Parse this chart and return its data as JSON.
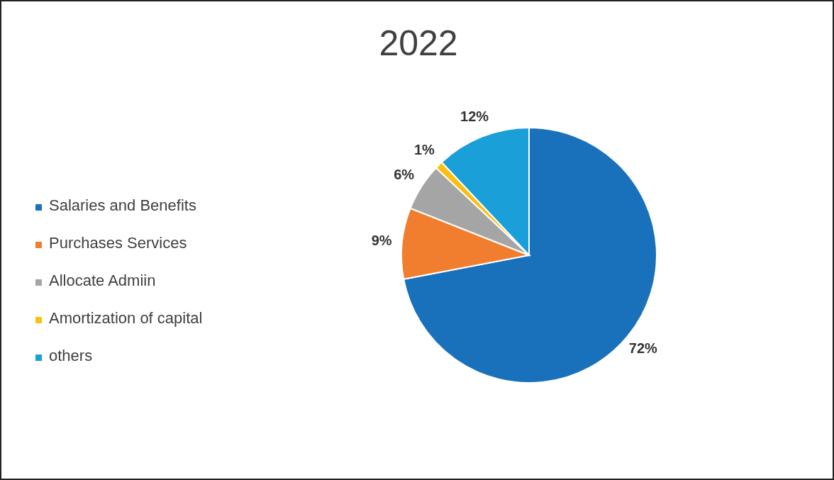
{
  "chart_data": {
    "type": "pie",
    "title": "2022",
    "categories": [
      "Salaries and Benefits",
      "Purchases Services",
      "Allocate Admiin",
      "Amortization of capital",
      "others"
    ],
    "values": [
      72,
      9,
      6,
      1,
      12
    ],
    "colors": [
      "#1a71bb",
      "#f07e2e",
      "#a5a5a5",
      "#fdbf0f",
      "#1a9fd9"
    ],
    "value_labels": [
      "72%",
      "9%",
      "6%",
      "1%",
      "12%"
    ],
    "legend": "left"
  }
}
